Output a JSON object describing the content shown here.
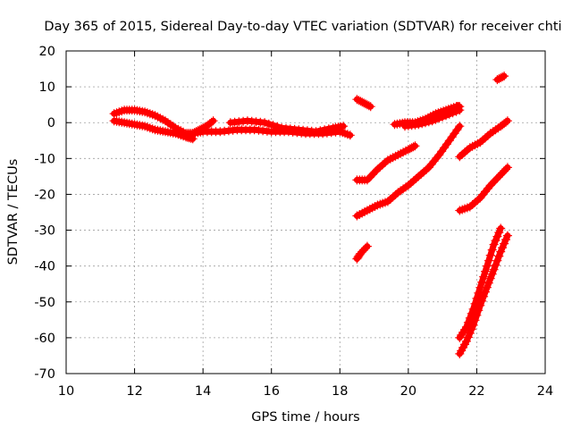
{
  "chart_data": {
    "type": "scatter",
    "title": "Day 365 of 2015, Sidereal Day-to-day VTEC variation (SDTVAR) for receiver chti",
    "xlabel": "GPS time / hours",
    "ylabel": "SDTVAR / TECUs",
    "xlim": [
      10,
      24
    ],
    "ylim": [
      -70,
      20
    ],
    "xticks": [
      "10",
      "12",
      "14",
      "16",
      "18",
      "20",
      "22",
      "24"
    ],
    "yticks": [
      "20",
      "10",
      "0",
      "-10",
      "-20",
      "-30",
      "-40",
      "-50",
      "-60",
      "-70"
    ],
    "grid": true,
    "marker": "plus",
    "series_color": "#ff0000",
    "series": [
      {
        "x": [
          11.4,
          11.7,
          12.0,
          12.3,
          12.6,
          12.9,
          13.2,
          13.5,
          13.7,
          13.9,
          14.1,
          14.3
        ],
        "y": [
          2.5,
          3.5,
          3.5,
          3.0,
          2.0,
          0.5,
          -1.5,
          -3.0,
          -3.0,
          -2.0,
          -1.0,
          0.5
        ]
      },
      {
        "x": [
          11.4,
          11.7,
          12.0,
          12.3,
          12.6,
          12.9,
          13.2,
          13.5,
          13.7
        ],
        "y": [
          0.5,
          0.0,
          -0.5,
          -1.0,
          -2.0,
          -2.5,
          -3.0,
          -4.0,
          -4.5
        ]
      },
      {
        "x": [
          13.7,
          14.0,
          14.5,
          15.0,
          15.5,
          16.0,
          16.5,
          17.0,
          17.5,
          18.0,
          18.3
        ],
        "y": [
          -3.0,
          -2.5,
          -2.5,
          -2.0,
          -2.0,
          -2.5,
          -2.5,
          -3.0,
          -3.0,
          -2.5,
          -3.5
        ]
      },
      {
        "x": [
          14.8,
          15.3,
          15.8,
          16.3,
          16.8,
          17.3,
          17.8,
          18.1
        ],
        "y": [
          0.0,
          0.5,
          0.0,
          -1.5,
          -2.0,
          -2.5,
          -1.5,
          -1.0
        ]
      },
      {
        "x": [
          18.5,
          18.7,
          18.9
        ],
        "y": [
          6.5,
          5.5,
          4.5
        ]
      },
      {
        "x": [
          18.5,
          18.8,
          19.1,
          19.4,
          19.7,
          20.0,
          20.2
        ],
        "y": [
          -16.0,
          -16.0,
          -13.0,
          -10.5,
          -9.0,
          -7.5,
          -6.5
        ]
      },
      {
        "x": [
          18.5,
          18.8,
          19.1,
          19.4,
          19.7,
          20.0,
          20.3,
          20.6,
          20.9,
          21.2,
          21.5
        ],
        "y": [
          -26.0,
          -24.5,
          -23.0,
          -22.0,
          -19.5,
          -17.5,
          -15.0,
          -12.5,
          -9.0,
          -5.0,
          -1.0
        ]
      },
      {
        "x": [
          18.5,
          18.6,
          18.8
        ],
        "y": [
          -38.0,
          -36.5,
          -34.5
        ]
      },
      {
        "x": [
          19.6,
          19.9,
          20.2,
          20.5,
          20.8,
          21.1,
          21.4,
          21.5
        ],
        "y": [
          -0.5,
          0.0,
          0.0,
          1.0,
          2.5,
          3.5,
          4.5,
          4.5
        ]
      },
      {
        "x": [
          19.9,
          20.3,
          20.7,
          21.1,
          21.5
        ],
        "y": [
          -1.0,
          -0.5,
          0.5,
          2.0,
          3.5
        ]
      },
      {
        "x": [
          21.5,
          21.8,
          22.1,
          22.4,
          22.7,
          22.9
        ],
        "y": [
          -9.5,
          -7.0,
          -5.5,
          -3.0,
          -1.0,
          0.5
        ]
      },
      {
        "x": [
          21.5,
          21.8,
          22.1,
          22.4,
          22.7,
          22.9
        ],
        "y": [
          -24.5,
          -23.5,
          -21.0,
          -17.5,
          -14.5,
          -12.5
        ]
      },
      {
        "x": [
          22.6,
          22.8
        ],
        "y": [
          12.0,
          13.0
        ]
      },
      {
        "x": [
          21.5,
          21.7,
          21.9,
          22.1,
          22.3,
          22.5,
          22.7
        ],
        "y": [
          -60.0,
          -57.0,
          -52.0,
          -46.0,
          -40.0,
          -34.0,
          -29.5
        ]
      },
      {
        "x": [
          21.5,
          21.7,
          21.9,
          22.1,
          22.3,
          22.5,
          22.7,
          22.9
        ],
        "y": [
          -64.5,
          -61.0,
          -56.5,
          -51.0,
          -46.0,
          -41.0,
          -36.0,
          -31.5
        ]
      }
    ]
  }
}
